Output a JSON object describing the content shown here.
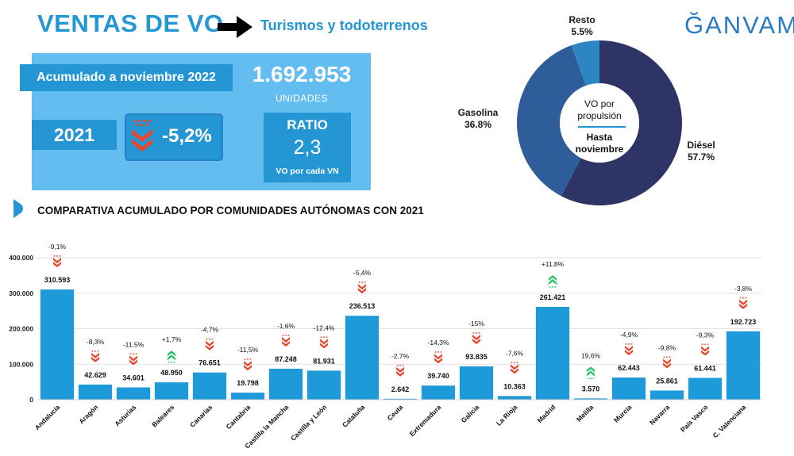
{
  "header": {
    "title": "VENTAS DE VO",
    "subtitle": "Turismos y todoterrenos",
    "logo_text": "ĞANVAM"
  },
  "summary": {
    "period_label": "Acumulado a noviembre 2022",
    "units_value": "1.692.953",
    "units_label": "UNIDADES",
    "compare_year": "2021",
    "change": "-5,2%",
    "ratio_title": "RATIO",
    "ratio_value": "2,3",
    "ratio_label": "VO por cada VN"
  },
  "section_title": "COMPARATIVA ACUMULADO POR COMUNIDADES AUTÓNOMAS CON 2021",
  "colors": {
    "accent": "#2596d4",
    "panel": "#63bdf0",
    "bar": "#1f9ad8",
    "down": "#e8472c",
    "up": "#23c46a",
    "diesel": "#2e3566",
    "gasolina": "#2e5d9a",
    "resto": "#2b86c2"
  },
  "chart_data": [
    {
      "type": "pie",
      "style": "donut",
      "center_text": [
        "VO por",
        "propulsión",
        "Hasta",
        "noviembre"
      ],
      "slices": [
        {
          "name": "Diésel",
          "label": "57.7%",
          "value": 57.7,
          "color": "#2e3566"
        },
        {
          "name": "Gasolina",
          "label": "36.8%",
          "value": 36.8,
          "color": "#2e5d9a"
        },
        {
          "name": "Resto",
          "label": "5.5%",
          "value": 5.5,
          "color": "#2b86c2"
        }
      ]
    },
    {
      "type": "bar",
      "title": "COMPARATIVA ACUMULADO POR COMUNIDADES AUTÓNOMAS CON 2021",
      "categories": [
        "Andalucía",
        "Aragón",
        "Asturias",
        "Baleares",
        "Canarias",
        "Cantabria",
        "Castilla la Mancha",
        "Castilla y León",
        "Cataluña",
        "Ceuta",
        "Extremadura",
        "Galicia",
        "La Rioja",
        "Madrid",
        "Melilla",
        "Murcia",
        "Navarra",
        "País Vasco",
        "C. Valenciana"
      ],
      "values": [
        310593,
        42629,
        34601,
        48950,
        76651,
        19798,
        87248,
        81931,
        236513,
        2642,
        39740,
        93835,
        10363,
        261421,
        3570,
        62443,
        25861,
        61441,
        192723
      ],
      "value_labels": [
        "310.593",
        "42.629",
        "34.601",
        "48.950",
        "76.651",
        "19.798",
        "87.248",
        "81.931",
        "236.513",
        "2.642",
        "39.740",
        "93.835",
        "10.363",
        "261.421",
        "3.570",
        "62.443",
        "25.861",
        "61.441",
        "192.723"
      ],
      "changes": [
        "-9,1%",
        "-8,3%",
        "-11,5%",
        "+1,7%",
        "-4,7%",
        "-11,5%",
        "-1,6%",
        "-12,4%",
        "-5,4%",
        "-2,7%",
        "-14,3%",
        "-15%",
        "-7,6%",
        "+11,8%",
        "19,6%",
        "-4,9%",
        "-9,8%",
        "-9,3%",
        "-3,8%"
      ],
      "trend": [
        "down",
        "down",
        "down",
        "up",
        "down",
        "down",
        "down",
        "down",
        "down",
        "down",
        "down",
        "down",
        "down",
        "up",
        "up",
        "down",
        "down",
        "down",
        "down"
      ],
      "ylim": [
        0,
        400000
      ],
      "yticks": [
        0,
        100000,
        200000,
        300000,
        400000
      ],
      "ytick_labels": [
        "0",
        "100.000",
        "200.000",
        "300.000",
        "400.000"
      ],
      "grid": true
    }
  ]
}
